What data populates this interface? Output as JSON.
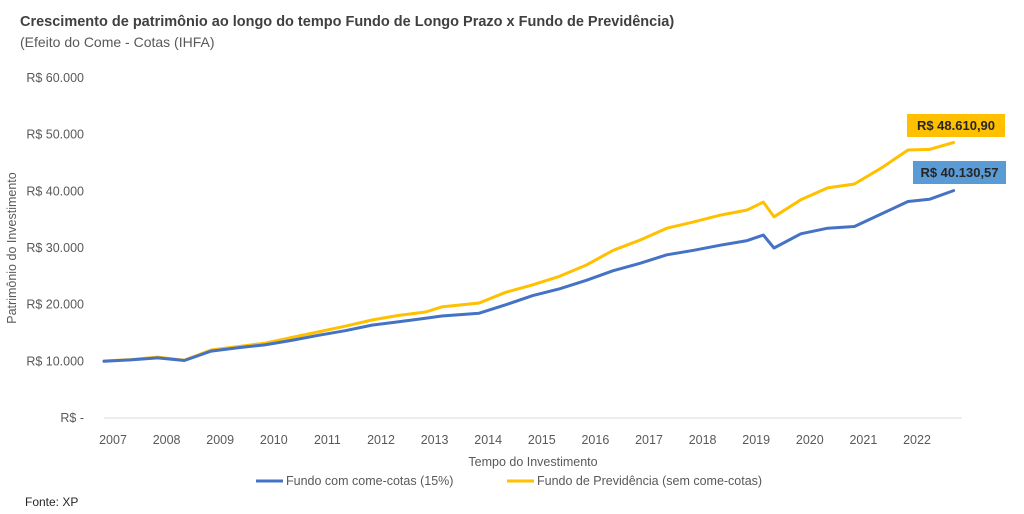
{
  "title": "Crescimento de patrimônio ao longo do tempo Fundo de Longo Prazo x Fundo de Previdência)",
  "subtitle": "(Efeito do Come - Cotas (IHFA)",
  "source": "Fonte: XP",
  "chart_data": {
    "type": "line",
    "title": "Crescimento de patrimônio ao longo do tempo Fundo de Longo Prazo x Fundo de Previdência)",
    "subtitle": "(Efeito do Come - Cotas (IHFA)",
    "xlabel": "Tempo do Investimento",
    "ylabel": "Patrimônio do Investimento",
    "ylim": [
      0,
      60000
    ],
    "xlim": [
      2007,
      2022.9
    ],
    "grid": false,
    "legend_position": "bottom",
    "y_ticks": [
      {
        "value": 0,
        "label": "R$ -"
      },
      {
        "value": 10000,
        "label": "R$ 10.000"
      },
      {
        "value": 20000,
        "label": "R$ 20.000"
      },
      {
        "value": 30000,
        "label": "R$ 30.000"
      },
      {
        "value": 40000,
        "label": "R$ 40.000"
      },
      {
        "value": 50000,
        "label": "R$ 50.000"
      },
      {
        "value": 60000,
        "label": "R$ 60.000"
      }
    ],
    "x_ticks": [
      "2007",
      "2008",
      "2009",
      "2010",
      "2011",
      "2012",
      "2013",
      "2014",
      "2015",
      "2016",
      "2017",
      "2018",
      "2019",
      "2020",
      "2021",
      "2022"
    ],
    "x": [
      2007.0,
      2007.5,
      2008.0,
      2008.5,
      2009.0,
      2009.5,
      2010.0,
      2010.5,
      2011.0,
      2011.5,
      2012.0,
      2012.5,
      2013.0,
      2013.3,
      2014.0,
      2014.5,
      2015.0,
      2015.5,
      2016.0,
      2016.5,
      2017.0,
      2017.5,
      2018.0,
      2018.5,
      2019.0,
      2019.3,
      2019.5,
      2020.0,
      2020.5,
      2021.0,
      2021.5,
      2022.0,
      2022.4,
      2022.85
    ],
    "series": [
      {
        "name": "Fundo com come-cotas (15%)",
        "color": "#4472C4",
        "values": [
          10000,
          10250,
          10600,
          10150,
          11800,
          12400,
          12900,
          13700,
          14600,
          15400,
          16400,
          17000,
          17600,
          18000,
          18500,
          20000,
          21600,
          22800,
          24300,
          26000,
          27300,
          28800,
          29600,
          30500,
          31300,
          32300,
          30000,
          32500,
          33500,
          33800,
          36000,
          38200,
          38600,
          40130.57
        ],
        "end_label": "R$ 40.130,57"
      },
      {
        "name": "Fundo de Previdência (sem come-cotas)",
        "color": "#FFC000",
        "values": [
          10060,
          10300,
          10750,
          10200,
          12000,
          12600,
          13200,
          14200,
          15200,
          16200,
          17300,
          18100,
          18700,
          19600,
          20300,
          22200,
          23500,
          25000,
          27000,
          29600,
          31400,
          33500,
          34600,
          35800,
          36700,
          38100,
          35500,
          38500,
          40600,
          41300,
          44100,
          47300,
          47400,
          48610.9
        ],
        "end_label": "R$ 48.610,90"
      }
    ],
    "label_colors": {
      "Fundo com come-cotas (15%)": "#5B9BD5",
      "Fundo de Previdência (sem come-cotas)": "#FFC000"
    }
  }
}
